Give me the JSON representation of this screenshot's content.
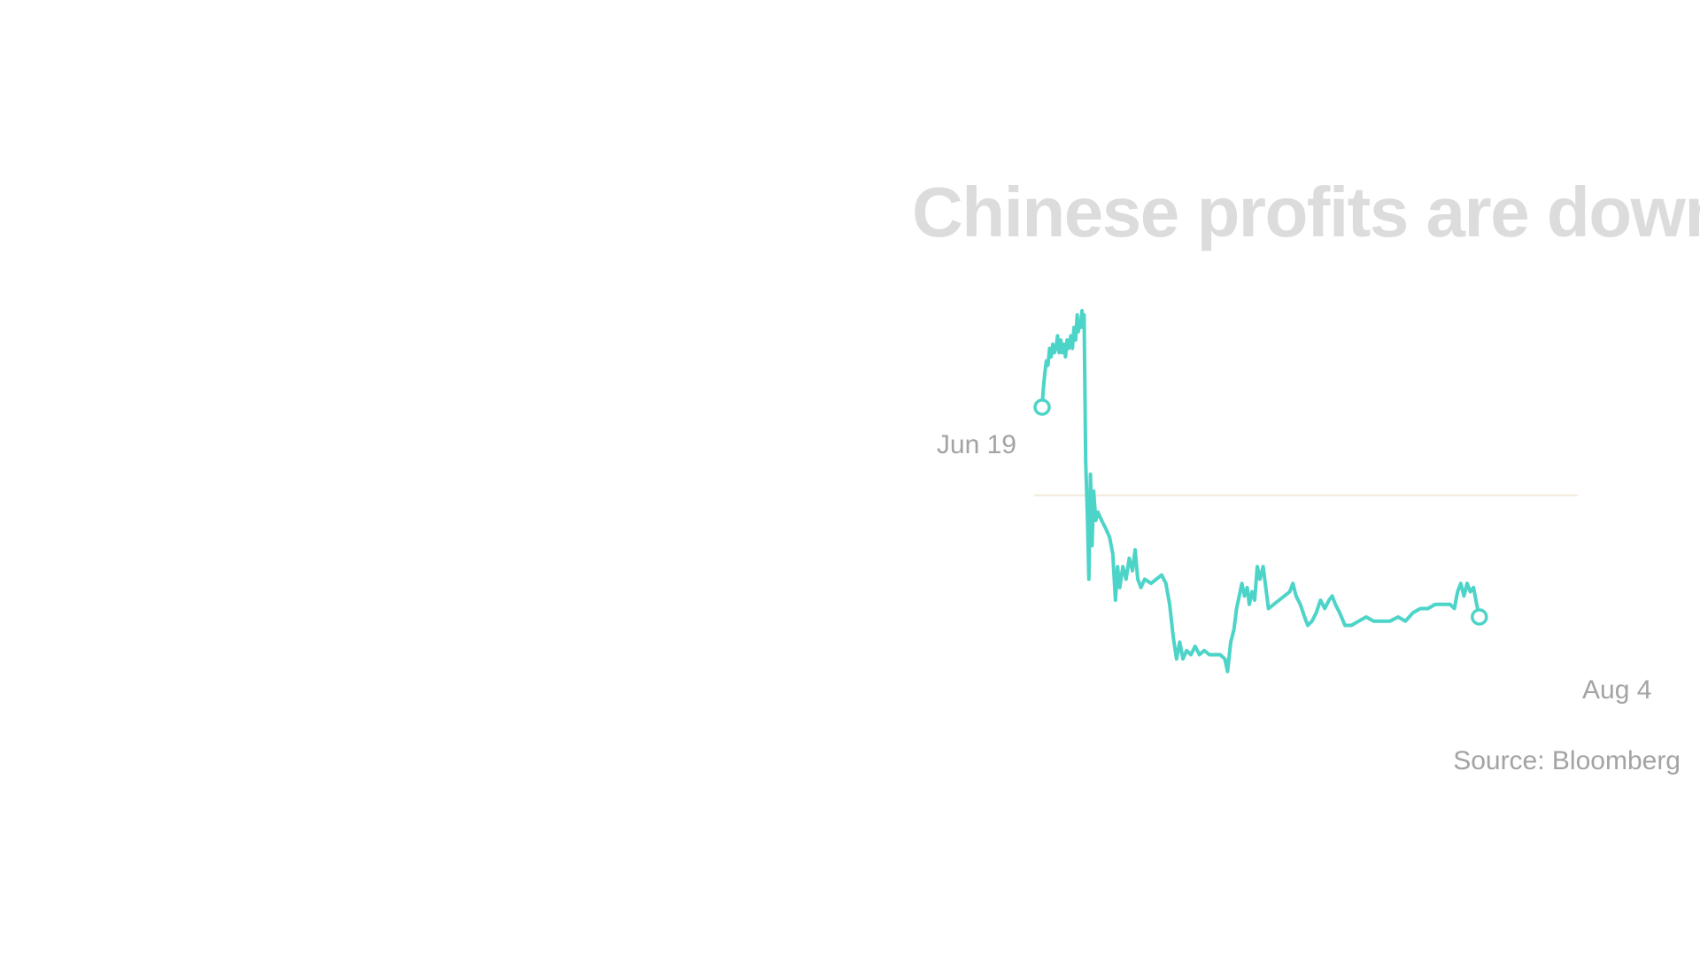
{
  "chart_data": {
    "type": "line",
    "title": "Chinese profits are down",
    "start_label": "Jun 19",
    "end_label": "Aug 4",
    "source": "Source: Bloomberg",
    "line_color": "#4dd4c8",
    "baseline_color": "#f3ead9",
    "x_range": [
      0,
      1
    ],
    "y_range": [
      0,
      100
    ],
    "baseline": 52,
    "series": [
      {
        "name": "profits",
        "points": [
          [
            0.0,
            73
          ],
          [
            0.002,
            77
          ],
          [
            0.005,
            81
          ],
          [
            0.008,
            84
          ],
          [
            0.011,
            83
          ],
          [
            0.014,
            87
          ],
          [
            0.017,
            85
          ],
          [
            0.02,
            88
          ],
          [
            0.023,
            86
          ],
          [
            0.026,
            87
          ],
          [
            0.029,
            90
          ],
          [
            0.032,
            86
          ],
          [
            0.035,
            89
          ],
          [
            0.038,
            86
          ],
          [
            0.041,
            88
          ],
          [
            0.044,
            85
          ],
          [
            0.047,
            89
          ],
          [
            0.05,
            87
          ],
          [
            0.054,
            90
          ],
          [
            0.057,
            87
          ],
          [
            0.06,
            92
          ],
          [
            0.063,
            89
          ],
          [
            0.066,
            95
          ],
          [
            0.068,
            91
          ],
          [
            0.07,
            93
          ],
          [
            0.072,
            92
          ],
          [
            0.075,
            96
          ],
          [
            0.077,
            92
          ],
          [
            0.079,
            95
          ],
          [
            0.082,
            60
          ],
          [
            0.085,
            48
          ],
          [
            0.088,
            32
          ],
          [
            0.091,
            57
          ],
          [
            0.094,
            40
          ],
          [
            0.097,
            53
          ],
          [
            0.101,
            46
          ],
          [
            0.105,
            48
          ],
          [
            0.112,
            46
          ],
          [
            0.12,
            44
          ],
          [
            0.127,
            42
          ],
          [
            0.133,
            38
          ],
          [
            0.138,
            27
          ],
          [
            0.142,
            35
          ],
          [
            0.146,
            30
          ],
          [
            0.152,
            35
          ],
          [
            0.158,
            32
          ],
          [
            0.164,
            37
          ],
          [
            0.17,
            34
          ],
          [
            0.175,
            39
          ],
          [
            0.18,
            32
          ],
          [
            0.186,
            30
          ],
          [
            0.193,
            32
          ],
          [
            0.205,
            31
          ],
          [
            0.215,
            32
          ],
          [
            0.225,
            33
          ],
          [
            0.233,
            31
          ],
          [
            0.24,
            26
          ],
          [
            0.247,
            18
          ],
          [
            0.253,
            13
          ],
          [
            0.259,
            17
          ],
          [
            0.265,
            13
          ],
          [
            0.272,
            15
          ],
          [
            0.28,
            14
          ],
          [
            0.288,
            16
          ],
          [
            0.296,
            14
          ],
          [
            0.305,
            15
          ],
          [
            0.315,
            14
          ],
          [
            0.325,
            14
          ],
          [
            0.335,
            14
          ],
          [
            0.344,
            13
          ],
          [
            0.349,
            10
          ],
          [
            0.355,
            17
          ],
          [
            0.361,
            20
          ],
          [
            0.366,
            25
          ],
          [
            0.371,
            28
          ],
          [
            0.376,
            31
          ],
          [
            0.381,
            28
          ],
          [
            0.386,
            30
          ],
          [
            0.39,
            26
          ],
          [
            0.395,
            29
          ],
          [
            0.4,
            27
          ],
          [
            0.405,
            35
          ],
          [
            0.41,
            32
          ],
          [
            0.416,
            35
          ],
          [
            0.421,
            30
          ],
          [
            0.426,
            25
          ],
          [
            0.436,
            26
          ],
          [
            0.446,
            27
          ],
          [
            0.456,
            28
          ],
          [
            0.466,
            29
          ],
          [
            0.472,
            31
          ],
          [
            0.478,
            28
          ],
          [
            0.486,
            26
          ],
          [
            0.494,
            23
          ],
          [
            0.5,
            21
          ],
          [
            0.508,
            22
          ],
          [
            0.516,
            24
          ],
          [
            0.524,
            27
          ],
          [
            0.532,
            25
          ],
          [
            0.54,
            27
          ],
          [
            0.546,
            28
          ],
          [
            0.552,
            26
          ],
          [
            0.56,
            24
          ],
          [
            0.57,
            21
          ],
          [
            0.582,
            21
          ],
          [
            0.596,
            22
          ],
          [
            0.61,
            23
          ],
          [
            0.624,
            22
          ],
          [
            0.64,
            22
          ],
          [
            0.655,
            22
          ],
          [
            0.67,
            23
          ],
          [
            0.684,
            22
          ],
          [
            0.698,
            24
          ],
          [
            0.712,
            25
          ],
          [
            0.726,
            25
          ],
          [
            0.74,
            26
          ],
          [
            0.754,
            26
          ],
          [
            0.768,
            26
          ],
          [
            0.776,
            25
          ],
          [
            0.782,
            29
          ],
          [
            0.788,
            31
          ],
          [
            0.794,
            28
          ],
          [
            0.8,
            31
          ],
          [
            0.806,
            29
          ],
          [
            0.812,
            30
          ],
          [
            0.818,
            26
          ],
          [
            0.823,
            23
          ]
        ]
      }
    ]
  }
}
